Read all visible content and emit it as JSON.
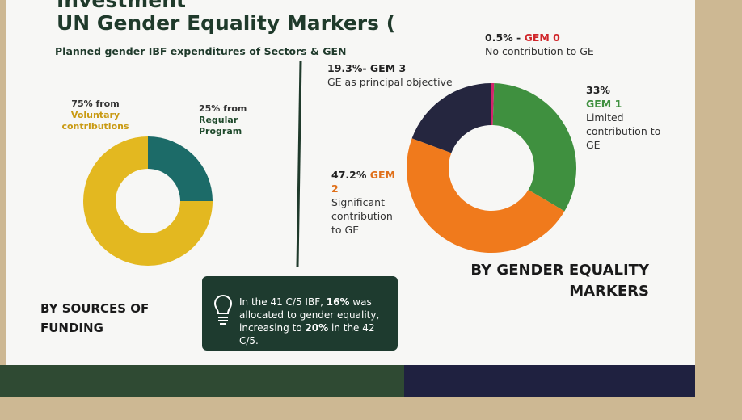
{
  "slide": {
    "title_lines": [
      "Investment",
      "UN Gender Equality Markers ("
    ],
    "subtitle": "Planned gender IBF expenditures of Sectors & GEN",
    "note": [
      "In the 41 C/5 IBF, ",
      "16%",
      " was allocated to gender equality, increasing to ",
      "20%",
      " in the 42 C/5."
    ]
  },
  "chart_data": [
    {
      "type": "donut",
      "title": "BY SOURCES OF FUNDING",
      "categories": [
        "Regular Program",
        "Voluntary contributions"
      ],
      "values": [
        25,
        75
      ],
      "value_labels": [
        "25% from",
        "75% from"
      ],
      "colors": [
        "#1c6b68",
        "#e3b820"
      ],
      "label_colors": [
        "#1f4a2c",
        "#c99a12"
      ]
    },
    {
      "type": "donut",
      "title": "BY GENDER EQUALITY MARKERS",
      "categories": [
        "GEM 0",
        "GEM 1",
        "GEM 2",
        "GEM 3"
      ],
      "values": [
        0.5,
        33,
        47.2,
        19.3
      ],
      "value_labels": [
        "0.5% -",
        "33%",
        "47.2%",
        "19.3%-"
      ],
      "descriptions": [
        "No contribution to GE",
        "Limited contribution to GE",
        "Significant contribution to GE",
        "GE as principal objective"
      ],
      "colors": [
        "#d3236b",
        "#3f903f",
        "#f07a1c",
        "#25263f"
      ],
      "label_colors": [
        "#d0262a",
        "#3f903f",
        "#e0701a",
        "#222222"
      ]
    }
  ]
}
